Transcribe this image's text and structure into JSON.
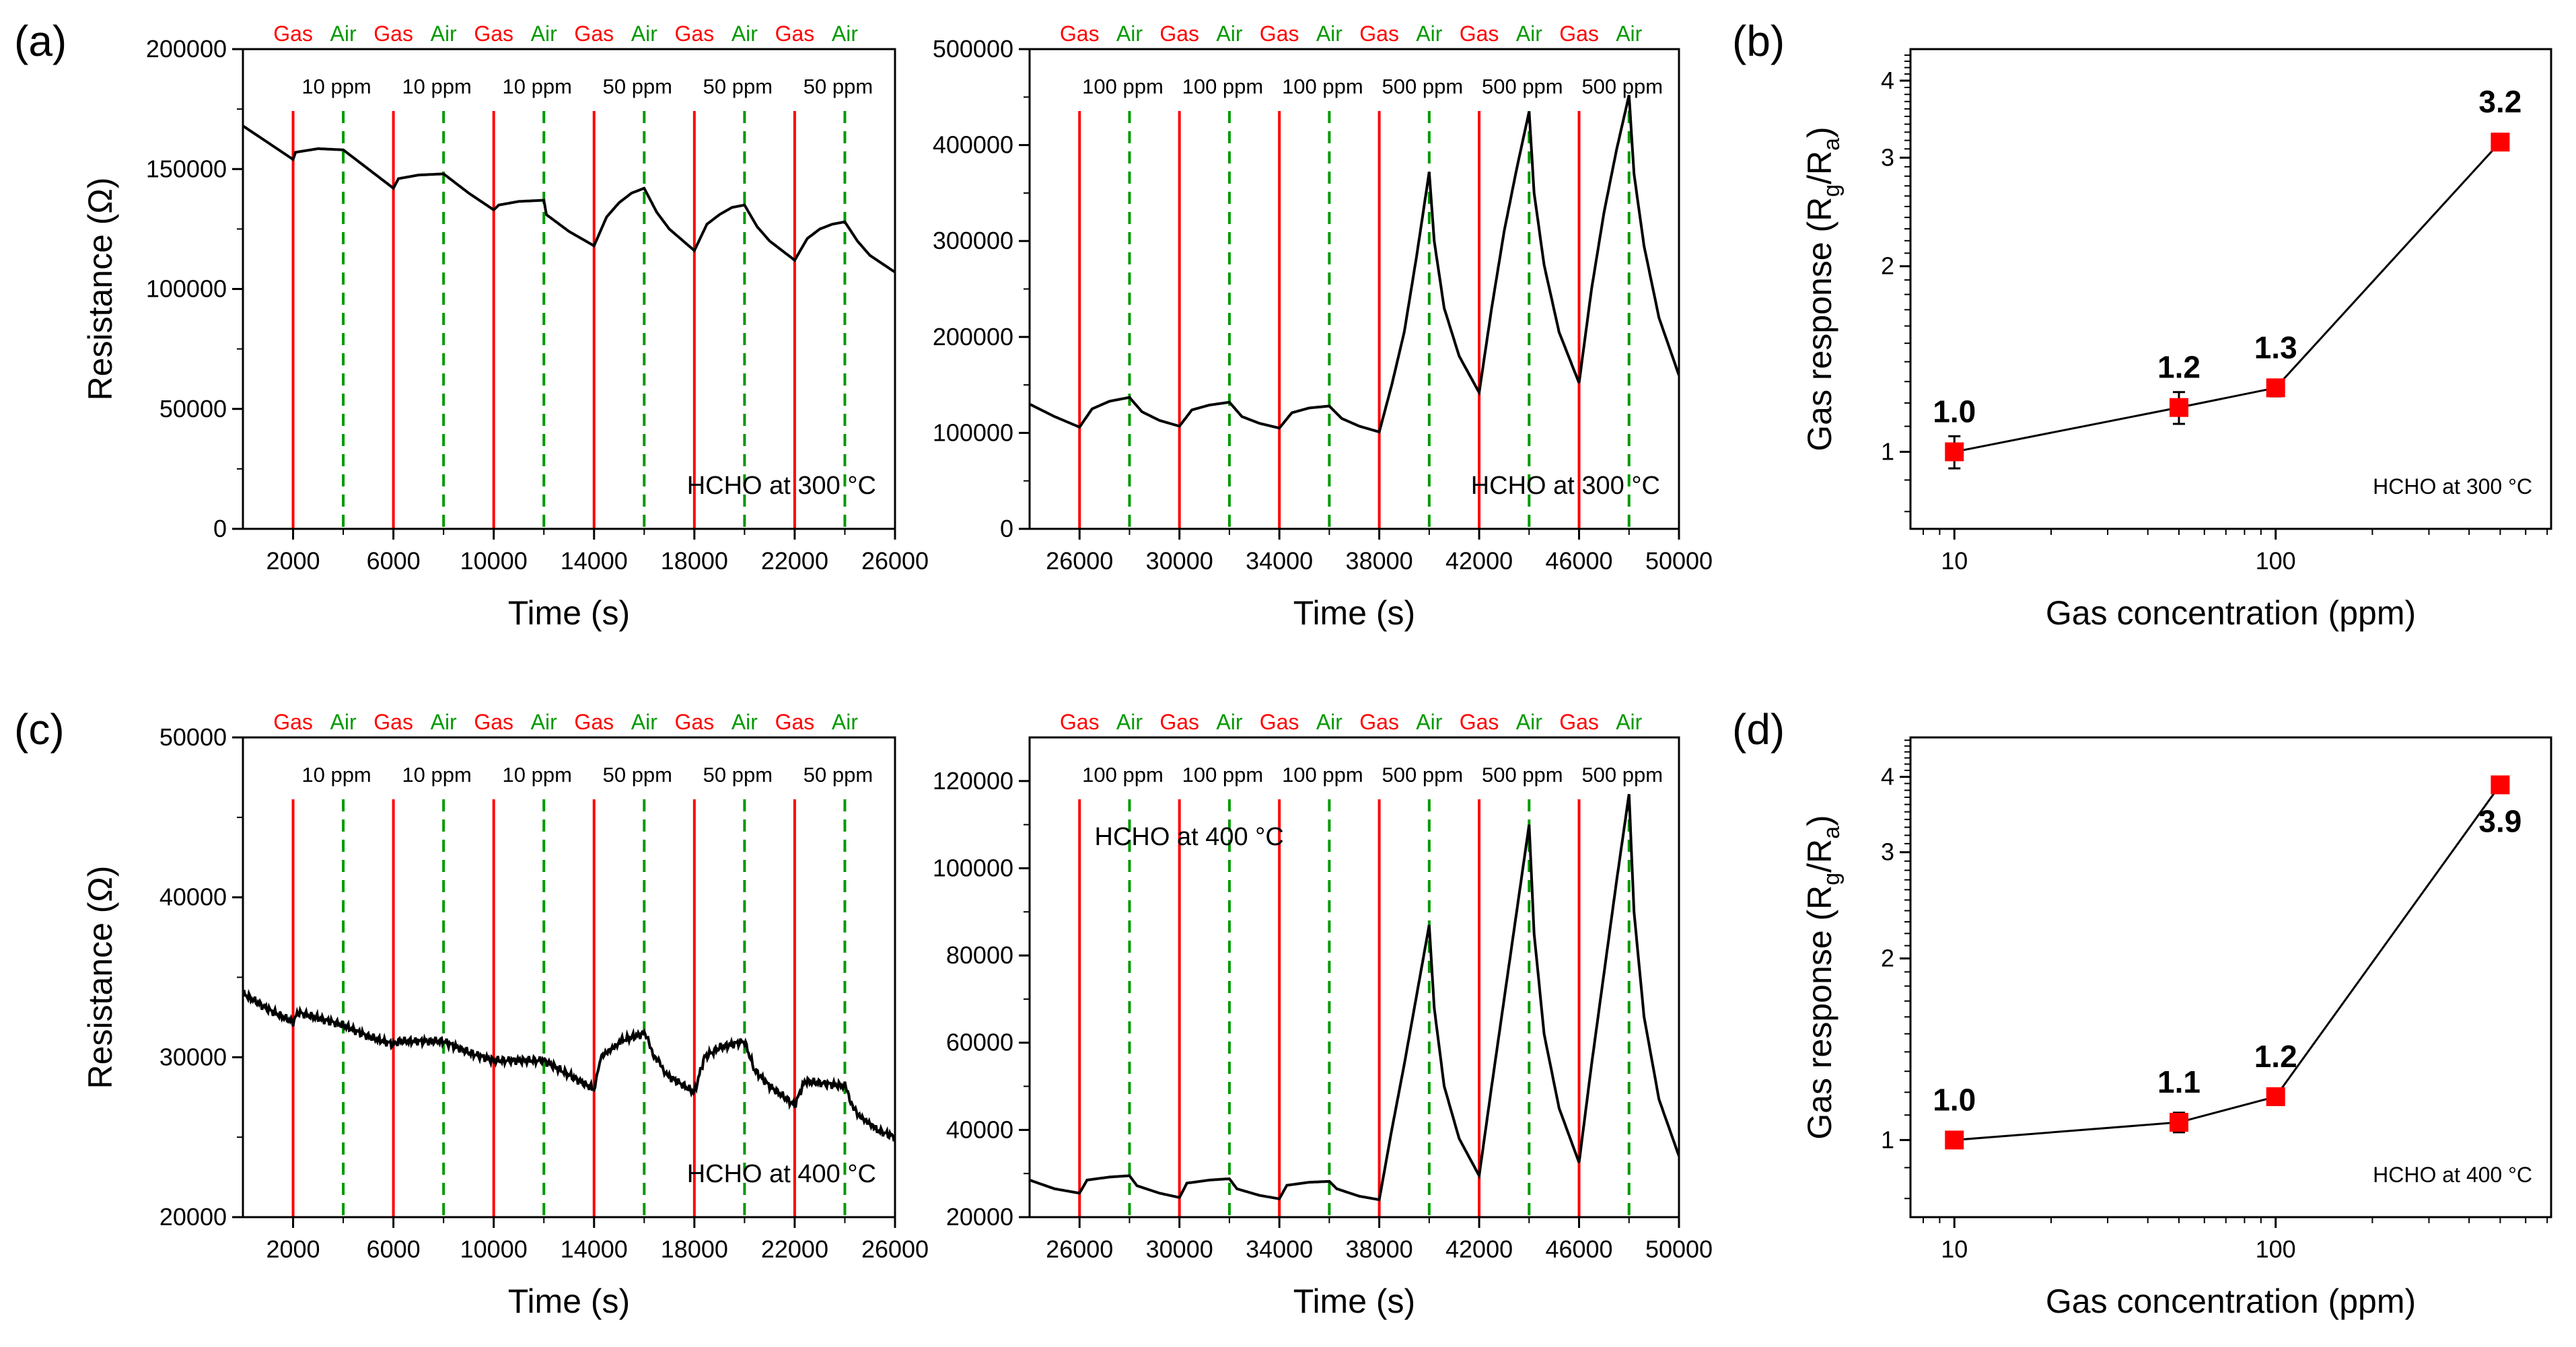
{
  "colors": {
    "gas": "#ff0000",
    "air": "#009900",
    "curve": "#000000",
    "marker": "#ff0000"
  },
  "chart_data": [
    {
      "id": "a-left",
      "panel_label": "(a)",
      "type": "line",
      "xlabel": "Time (s)",
      "ylabel": "Resistance (Ω)",
      "xlim": [
        0,
        26000
      ],
      "ylim": [
        0,
        200000
      ],
      "xticks": [
        2000,
        6000,
        10000,
        14000,
        18000,
        22000,
        26000
      ],
      "yticks": [
        0,
        50000,
        100000,
        150000,
        200000
      ],
      "annotation": "HCHO at 300 °C",
      "annotation_placement": "bottom-right",
      "gas_times": [
        2000,
        6000,
        10000,
        14000,
        18000,
        22000
      ],
      "air_times": [
        4000,
        8000,
        12000,
        16000,
        20000,
        24000
      ],
      "gas_label": "Gas",
      "air_label": "Air",
      "ppm_labels": [
        "10 ppm",
        "10 ppm",
        "10 ppm",
        "50 ppm",
        "50 ppm",
        "50 ppm"
      ],
      "series": [
        [
          0,
          168000
        ],
        [
          1000,
          161000
        ],
        [
          2000,
          154000
        ],
        [
          2100,
          157000
        ],
        [
          3000,
          158500
        ],
        [
          4000,
          158000
        ],
        [
          5000,
          150000
        ],
        [
          6000,
          142000
        ],
        [
          6200,
          146000
        ],
        [
          7000,
          147500
        ],
        [
          8000,
          148000
        ],
        [
          9000,
          140000
        ],
        [
          10000,
          133000
        ],
        [
          10200,
          135000
        ],
        [
          11000,
          136500
        ],
        [
          12000,
          137000
        ],
        [
          12100,
          131000
        ],
        [
          13000,
          124000
        ],
        [
          14000,
          118000
        ],
        [
          14500,
          130000
        ],
        [
          15000,
          136000
        ],
        [
          15500,
          140000
        ],
        [
          16000,
          142000
        ],
        [
          16500,
          132000
        ],
        [
          17000,
          125000
        ],
        [
          18000,
          116000
        ],
        [
          18500,
          127000
        ],
        [
          19000,
          131000
        ],
        [
          19500,
          134000
        ],
        [
          20000,
          135000
        ],
        [
          20500,
          126000
        ],
        [
          21000,
          120000
        ],
        [
          22000,
          112000
        ],
        [
          22500,
          121000
        ],
        [
          23000,
          125000
        ],
        [
          23500,
          127000
        ],
        [
          24000,
          128000
        ],
        [
          24500,
          120000
        ],
        [
          25000,
          114000
        ],
        [
          26000,
          107000
        ]
      ]
    },
    {
      "id": "a-right",
      "type": "line",
      "xlabel": "Time (s)",
      "xlim": [
        24000,
        50000
      ],
      "ylim": [
        0,
        500000
      ],
      "xticks": [
        26000,
        30000,
        34000,
        38000,
        42000,
        46000,
        50000
      ],
      "yticks": [
        0,
        100000,
        200000,
        300000,
        400000,
        500000
      ],
      "annotation": "HCHO at 300 °C",
      "annotation_placement": "bottom-right",
      "gas_times": [
        26000,
        30000,
        34000,
        38000,
        42000,
        46000
      ],
      "air_times": [
        28000,
        32000,
        36000,
        40000,
        44000,
        48000
      ],
      "gas_label": "Gas",
      "air_label": "Air",
      "ppm_labels": [
        "100 ppm",
        "100 ppm",
        "100 ppm",
        "500 ppm",
        "500 ppm",
        "500 ppm"
      ],
      "series": [
        [
          24000,
          130000
        ],
        [
          25000,
          117000
        ],
        [
          26000,
          106000
        ],
        [
          26500,
          125000
        ],
        [
          27200,
          133000
        ],
        [
          28000,
          137000
        ],
        [
          28500,
          122000
        ],
        [
          29200,
          113000
        ],
        [
          30000,
          107000
        ],
        [
          30500,
          124000
        ],
        [
          31200,
          129000
        ],
        [
          32000,
          132000
        ],
        [
          32500,
          117000
        ],
        [
          33200,
          110000
        ],
        [
          34000,
          105000
        ],
        [
          34500,
          121000
        ],
        [
          35200,
          126000
        ],
        [
          36000,
          128000
        ],
        [
          36500,
          115000
        ],
        [
          37200,
          107000
        ],
        [
          38000,
          101000
        ],
        [
          38500,
          150000
        ],
        [
          39000,
          205000
        ],
        [
          39500,
          285000
        ],
        [
          40000,
          372000
        ],
        [
          40200,
          300000
        ],
        [
          40600,
          230000
        ],
        [
          41200,
          180000
        ],
        [
          42000,
          142000
        ],
        [
          42500,
          230000
        ],
        [
          43000,
          310000
        ],
        [
          43500,
          375000
        ],
        [
          44000,
          435000
        ],
        [
          44200,
          350000
        ],
        [
          44600,
          275000
        ],
        [
          45200,
          205000
        ],
        [
          46000,
          152000
        ],
        [
          46500,
          250000
        ],
        [
          47000,
          330000
        ],
        [
          47500,
          395000
        ],
        [
          48000,
          452000
        ],
        [
          48200,
          370000
        ],
        [
          48600,
          295000
        ],
        [
          49200,
          220000
        ],
        [
          50000,
          160000
        ]
      ]
    },
    {
      "id": "b",
      "panel_label": "(b)",
      "type": "scatter",
      "xlabel": "Gas concentration (ppm)",
      "ylabel_parts": [
        "Gas response (R",
        "g",
        "/R",
        "a",
        ")"
      ],
      "xscale": "log",
      "yscale": "log",
      "xlim": [
        7.3,
        720
      ],
      "ylim": [
        0.75,
        4.5
      ],
      "xticks": [
        10,
        100
      ],
      "yticks": [
        1,
        2,
        3,
        4
      ],
      "annotation": "HCHO at 300 °C",
      "annotation_placement": "bottom-right",
      "x": [
        10,
        50,
        100,
        500
      ],
      "y": [
        1.0,
        1.18,
        1.27,
        3.18
      ],
      "yerr": [
        0.06,
        0.07,
        0.04,
        0.04
      ],
      "point_labels": [
        "1.0",
        "1.2",
        "1.3",
        "3.2"
      ],
      "label_side": [
        "above",
        "above",
        "above",
        "above"
      ]
    },
    {
      "id": "c-left",
      "panel_label": "(c)",
      "type": "line",
      "xlabel": "Time (s)",
      "ylabel": "Resistance (Ω)",
      "xlim": [
        0,
        26000
      ],
      "ylim": [
        20000,
        50000
      ],
      "xticks": [
        2000,
        6000,
        10000,
        14000,
        18000,
        22000,
        26000
      ],
      "yticks": [
        20000,
        30000,
        40000,
        50000
      ],
      "annotation": "HCHO at 400 °C",
      "annotation_placement": "bottom-right",
      "gas_times": [
        2000,
        6000,
        10000,
        14000,
        18000,
        22000
      ],
      "air_times": [
        4000,
        8000,
        12000,
        16000,
        20000,
        24000
      ],
      "gas_label": "Gas",
      "air_label": "Air",
      "ppm_labels": [
        "10 ppm",
        "10 ppm",
        "10 ppm",
        "50 ppm",
        "50 ppm",
        "50 ppm"
      ],
      "noisy": true,
      "series": [
        [
          0,
          34000
        ],
        [
          1000,
          33000
        ],
        [
          2000,
          32200
        ],
        [
          2200,
          32800
        ],
        [
          4000,
          32000
        ],
        [
          5000,
          31300
        ],
        [
          6000,
          30800
        ],
        [
          6200,
          31000
        ],
        [
          8000,
          31000
        ],
        [
          9000,
          30300
        ],
        [
          10000,
          29800
        ],
        [
          12000,
          29800
        ],
        [
          13000,
          28900
        ],
        [
          14000,
          28000
        ],
        [
          14300,
          30200
        ],
        [
          15000,
          31000
        ],
        [
          16000,
          31500
        ],
        [
          16500,
          29800
        ],
        [
          17000,
          28800
        ],
        [
          18000,
          27800
        ],
        [
          18400,
          30000
        ],
        [
          19000,
          30600
        ],
        [
          20000,
          31000
        ],
        [
          20400,
          29200
        ],
        [
          21000,
          28200
        ],
        [
          22000,
          27000
        ],
        [
          22400,
          28500
        ],
        [
          24000,
          28200
        ],
        [
          24500,
          26300
        ],
        [
          25200,
          25500
        ],
        [
          26000,
          25000
        ]
      ]
    },
    {
      "id": "c-right",
      "type": "line",
      "xlabel": "Time (s)",
      "xlim": [
        24000,
        50000
      ],
      "ylim": [
        20000,
        130000
      ],
      "xticks": [
        26000,
        30000,
        34000,
        38000,
        42000,
        46000,
        50000
      ],
      "yticks": [
        20000,
        40000,
        60000,
        80000,
        100000,
        120000
      ],
      "annotation": "HCHO at 400 °C",
      "annotation_placement": "top-left",
      "gas_times": [
        26000,
        30000,
        34000,
        38000,
        42000,
        46000
      ],
      "air_times": [
        28000,
        32000,
        36000,
        40000,
        44000,
        48000
      ],
      "gas_label": "Gas",
      "air_label": "Air",
      "ppm_labels": [
        "100 ppm",
        "100 ppm",
        "100 ppm",
        "500 ppm",
        "500 ppm",
        "500 ppm"
      ],
      "series": [
        [
          24000,
          28500
        ],
        [
          25000,
          26500
        ],
        [
          26000,
          25500
        ],
        [
          26300,
          28500
        ],
        [
          27200,
          29200
        ],
        [
          28000,
          29500
        ],
        [
          28300,
          27200
        ],
        [
          29200,
          25500
        ],
        [
          30000,
          24500
        ],
        [
          30300,
          27800
        ],
        [
          31200,
          28500
        ],
        [
          32000,
          28800
        ],
        [
          32300,
          26500
        ],
        [
          33200,
          25000
        ],
        [
          34000,
          24200
        ],
        [
          34300,
          27300
        ],
        [
          35200,
          28000
        ],
        [
          36000,
          28200
        ],
        [
          36300,
          26500
        ],
        [
          37200,
          24800
        ],
        [
          38000,
          24000
        ],
        [
          38500,
          40000
        ],
        [
          39000,
          55000
        ],
        [
          39500,
          71000
        ],
        [
          40000,
          87000
        ],
        [
          40200,
          68000
        ],
        [
          40600,
          50000
        ],
        [
          41200,
          38000
        ],
        [
          42000,
          29500
        ],
        [
          42500,
          50000
        ],
        [
          43000,
          70000
        ],
        [
          43500,
          90000
        ],
        [
          44000,
          110000
        ],
        [
          44200,
          85000
        ],
        [
          44600,
          62000
        ],
        [
          45200,
          45000
        ],
        [
          46000,
          32500
        ],
        [
          46500,
          55000
        ],
        [
          47000,
          76000
        ],
        [
          47500,
          97000
        ],
        [
          48000,
          117000
        ],
        [
          48200,
          90000
        ],
        [
          48600,
          66000
        ],
        [
          49200,
          47000
        ],
        [
          50000,
          34000
        ]
      ]
    },
    {
      "id": "d",
      "panel_label": "(d)",
      "type": "scatter",
      "xlabel": "Gas concentration (ppm)",
      "ylabel_parts": [
        "Gas response (R",
        "g",
        "/R",
        "a",
        ")"
      ],
      "xscale": "log",
      "yscale": "log",
      "xlim": [
        7.3,
        720
      ],
      "ylim": [
        0.745,
        4.65
      ],
      "xticks": [
        10,
        100
      ],
      "yticks": [
        1,
        2,
        3,
        4
      ],
      "annotation": "HCHO at 400 °C",
      "annotation_placement": "bottom-right",
      "x": [
        10,
        50,
        100,
        500
      ],
      "y": [
        1.0,
        1.07,
        1.18,
        3.88
      ],
      "yerr": [
        0.03,
        0.04,
        0.03,
        0.04
      ],
      "point_labels": [
        "1.0",
        "1.1",
        "1.2",
        "3.9"
      ],
      "label_side": [
        "above",
        "above",
        "above",
        "below"
      ]
    }
  ]
}
